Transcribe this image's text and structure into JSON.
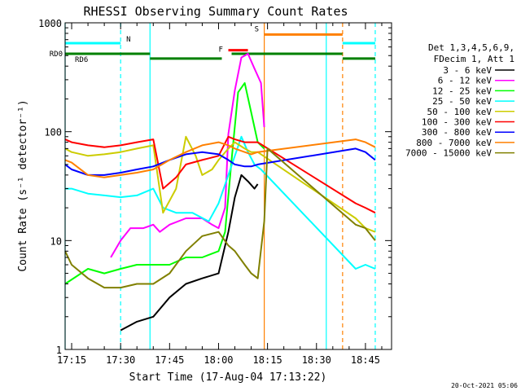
{
  "chart_data": {
    "type": "line",
    "title": "RHESSI Observing Summary Count Rates",
    "xlabel": "Start Time (17-Aug-04 17:13:22)",
    "ylabel": "Count Rate (s⁻¹ detector⁻¹)",
    "yscale": "log",
    "xlim": [
      "17:13",
      "18:53"
    ],
    "ylim": [
      1,
      1000
    ],
    "x_ticks": [
      "17:15",
      "17:30",
      "17:45",
      "18:00",
      "18:15",
      "18:30",
      "18:45"
    ],
    "y_ticks": [
      "1",
      "10",
      "100",
      "1000"
    ],
    "footer_date": "20-Oct-2021 05:06",
    "legend": {
      "header": [
        "Det 1,3,4,5,6,9,",
        "FDecim 1, Att 1"
      ],
      "placement": "right"
    },
    "series": [
      {
        "name": "3 - 6 keV",
        "color": "#000000",
        "points": [
          [
            "17:30",
            1.5
          ],
          [
            "17:35",
            1.8
          ],
          [
            "17:40",
            2
          ],
          [
            "17:45",
            3
          ],
          [
            "17:50",
            4
          ],
          [
            "17:55",
            4.5
          ],
          [
            "18:00",
            5
          ],
          [
            "18:03",
            12
          ],
          [
            "18:05",
            25
          ],
          [
            "18:07",
            40
          ],
          [
            "18:09",
            35
          ],
          [
            "18:11",
            30
          ],
          [
            "18:12",
            33
          ]
        ]
      },
      {
        "name": "6 - 12 keV",
        "color": "#ff00ff",
        "points": [
          [
            "17:27",
            7
          ],
          [
            "17:30",
            10
          ],
          [
            "17:33",
            13
          ],
          [
            "17:37",
            13
          ],
          [
            "17:40",
            14
          ],
          [
            "17:42",
            12
          ],
          [
            "17:45",
            14
          ],
          [
            "17:50",
            16
          ],
          [
            "17:55",
            16
          ],
          [
            "17:58",
            14
          ],
          [
            "18:00",
            13
          ],
          [
            "18:02",
            20
          ],
          [
            "18:03",
            95
          ],
          [
            "18:05",
            240
          ],
          [
            "18:07",
            480
          ],
          [
            "18:09",
            520
          ],
          [
            "18:11",
            380
          ],
          [
            "18:13",
            280
          ],
          [
            "18:14",
            110
          ]
        ]
      },
      {
        "name": "12 - 25 keV",
        "color": "#00ff00",
        "points": [
          [
            "17:13",
            4
          ],
          [
            "17:20",
            5.5
          ],
          [
            "17:25",
            5
          ],
          [
            "17:30",
            5.5
          ],
          [
            "17:35",
            6
          ],
          [
            "17:40",
            6
          ],
          [
            "17:45",
            6
          ],
          [
            "17:50",
            7
          ],
          [
            "17:55",
            7
          ],
          [
            "18:00",
            8
          ],
          [
            "18:02",
            12
          ],
          [
            "18:04",
            55
          ],
          [
            "18:06",
            230
          ],
          [
            "18:08",
            280
          ],
          [
            "18:10",
            150
          ],
          [
            "18:12",
            80
          ],
          [
            "18:14",
            70
          ]
        ]
      },
      {
        "name": "25 - 50 keV",
        "color": "#00ffff",
        "points": [
          [
            "17:13",
            30
          ],
          [
            "17:15",
            30
          ],
          [
            "17:20",
            27
          ],
          [
            "17:25",
            26
          ],
          [
            "17:30",
            25
          ],
          [
            "17:35",
            26
          ],
          [
            "17:40",
            30
          ],
          [
            "17:43",
            20
          ],
          [
            "17:47",
            18
          ],
          [
            "17:52",
            18
          ],
          [
            "17:57",
            15
          ],
          [
            "18:00",
            22
          ],
          [
            "18:03",
            40
          ],
          [
            "18:05",
            60
          ],
          [
            "18:07",
            90
          ],
          [
            "18:09",
            65
          ],
          [
            "18:11",
            50
          ],
          [
            "18:13",
            45
          ],
          [
            "18:42",
            5.5
          ],
          [
            "18:45",
            6
          ],
          [
            "18:48",
            5.5
          ]
        ]
      },
      {
        "name": "50 - 100 keV",
        "color": "#cccc00",
        "points": [
          [
            "17:13",
            70
          ],
          [
            "17:15",
            65
          ],
          [
            "17:20",
            60
          ],
          [
            "17:25",
            62
          ],
          [
            "17:30",
            65
          ],
          [
            "17:35",
            70
          ],
          [
            "17:40",
            75
          ],
          [
            "17:43",
            18
          ],
          [
            "17:47",
            30
          ],
          [
            "17:50",
            90
          ],
          [
            "17:53",
            60
          ],
          [
            "17:55",
            40
          ],
          [
            "17:58",
            45
          ],
          [
            "18:00",
            55
          ],
          [
            "18:03",
            70
          ],
          [
            "18:05",
            80
          ],
          [
            "18:08",
            70
          ],
          [
            "18:10",
            65
          ],
          [
            "18:12",
            65
          ],
          [
            "18:42",
            16
          ],
          [
            "18:45",
            13
          ],
          [
            "18:48",
            12
          ]
        ]
      },
      {
        "name": "100 - 300 keV",
        "color": "#ff0000",
        "points": [
          [
            "17:13",
            85
          ],
          [
            "17:15",
            80
          ],
          [
            "17:20",
            75
          ],
          [
            "17:25",
            72
          ],
          [
            "17:30",
            75
          ],
          [
            "17:35",
            80
          ],
          [
            "17:40",
            85
          ],
          [
            "17:43",
            30
          ],
          [
            "17:47",
            38
          ],
          [
            "17:50",
            50
          ],
          [
            "17:55",
            55
          ],
          [
            "18:00",
            60
          ],
          [
            "18:03",
            90
          ],
          [
            "18:05",
            85
          ],
          [
            "18:08",
            80
          ],
          [
            "18:10",
            80
          ],
          [
            "18:12",
            80
          ],
          [
            "18:42",
            22
          ],
          [
            "18:45",
            20
          ],
          [
            "18:48",
            18
          ]
        ]
      },
      {
        "name": "300 - 800 keV",
        "color": "#0000ff",
        "points": [
          [
            "17:13",
            50
          ],
          [
            "17:15",
            45
          ],
          [
            "17:20",
            40
          ],
          [
            "17:25",
            40
          ],
          [
            "17:30",
            42
          ],
          [
            "17:35",
            45
          ],
          [
            "17:40",
            48
          ],
          [
            "17:45",
            55
          ],
          [
            "17:50",
            62
          ],
          [
            "17:55",
            65
          ],
          [
            "18:00",
            62
          ],
          [
            "18:03",
            55
          ],
          [
            "18:05",
            50
          ],
          [
            "18:08",
            48
          ],
          [
            "18:10",
            48
          ],
          [
            "18:12",
            50
          ],
          [
            "18:42",
            70
          ],
          [
            "18:45",
            65
          ],
          [
            "18:48",
            55
          ]
        ]
      },
      {
        "name": "800 - 7000 keV",
        "color": "#ff8000",
        "points": [
          [
            "17:13",
            55
          ],
          [
            "17:15",
            52
          ],
          [
            "17:20",
            40
          ],
          [
            "17:25",
            38
          ],
          [
            "17:30",
            40
          ],
          [
            "17:35",
            42
          ],
          [
            "17:40",
            45
          ],
          [
            "17:45",
            55
          ],
          [
            "17:50",
            65
          ],
          [
            "17:55",
            75
          ],
          [
            "18:00",
            80
          ],
          [
            "18:03",
            75
          ],
          [
            "18:05",
            70
          ],
          [
            "18:08",
            65
          ],
          [
            "18:10",
            62
          ],
          [
            "18:12",
            65
          ],
          [
            "18:42",
            85
          ],
          [
            "18:45",
            80
          ],
          [
            "18:48",
            72
          ]
        ]
      },
      {
        "name": "7000 - 15000 keV",
        "color": "#808000",
        "points": [
          [
            "17:13",
            8
          ],
          [
            "17:15",
            6
          ],
          [
            "17:20",
            4.5
          ],
          [
            "17:25",
            3.7
          ],
          [
            "17:30",
            3.7
          ],
          [
            "17:35",
            4
          ],
          [
            "17:40",
            4
          ],
          [
            "17:45",
            5
          ],
          [
            "17:50",
            8
          ],
          [
            "17:55",
            11
          ],
          [
            "18:00",
            12
          ],
          [
            "18:03",
            9
          ],
          [
            "18:05",
            8
          ],
          [
            "18:08",
            6
          ],
          [
            "18:10",
            5
          ],
          [
            "18:12",
            4.5
          ],
          [
            "18:14",
            15
          ],
          [
            "18:15",
            70
          ],
          [
            "18:42",
            14
          ],
          [
            "18:45",
            13
          ],
          [
            "18:48",
            10
          ]
        ]
      }
    ],
    "markers": {
      "vlines": [
        {
          "time": "17:13",
          "color": "#00ffff",
          "style": "solid"
        },
        {
          "time": "17:30",
          "color": "#00ffff",
          "style": "dashed"
        },
        {
          "time": "17:39",
          "color": "#00ffff",
          "style": "solid"
        },
        {
          "time": "18:14",
          "color": "#ff8000",
          "style": "solid"
        },
        {
          "time": "18:33",
          "color": "#00ffff",
          "style": "solid"
        },
        {
          "time": "18:38",
          "color": "#ff8000",
          "style": "dashed"
        },
        {
          "time": "18:48",
          "color": "#00ffff",
          "style": "dashed"
        }
      ],
      "bars": [
        {
          "label": "N",
          "color": "#00ffff",
          "start": "17:13",
          "end": "17:30",
          "value": 650
        },
        {
          "label": "",
          "color": "#00ffff",
          "start": "18:38",
          "end": "18:48",
          "value": 650
        },
        {
          "label": "S",
          "color": "#ff8000",
          "start": "18:14",
          "end": "18:38",
          "value": 780
        },
        {
          "label": "F",
          "color": "#ff0000",
          "start": "18:03",
          "end": "18:09",
          "value": 560
        },
        {
          "label": "RD0",
          "color": "#008000",
          "start": "17:13",
          "end": "17:39",
          "value": 520
        },
        {
          "label": "RD6",
          "color": "#008000",
          "start": "17:39",
          "end": "18:01",
          "value": 470
        },
        {
          "label": "",
          "color": "#008000",
          "start": "18:04",
          "end": "18:38",
          "value": 520
        },
        {
          "label": "",
          "color": "#008000",
          "start": "18:38",
          "end": "18:48",
          "value": 470
        }
      ]
    }
  }
}
